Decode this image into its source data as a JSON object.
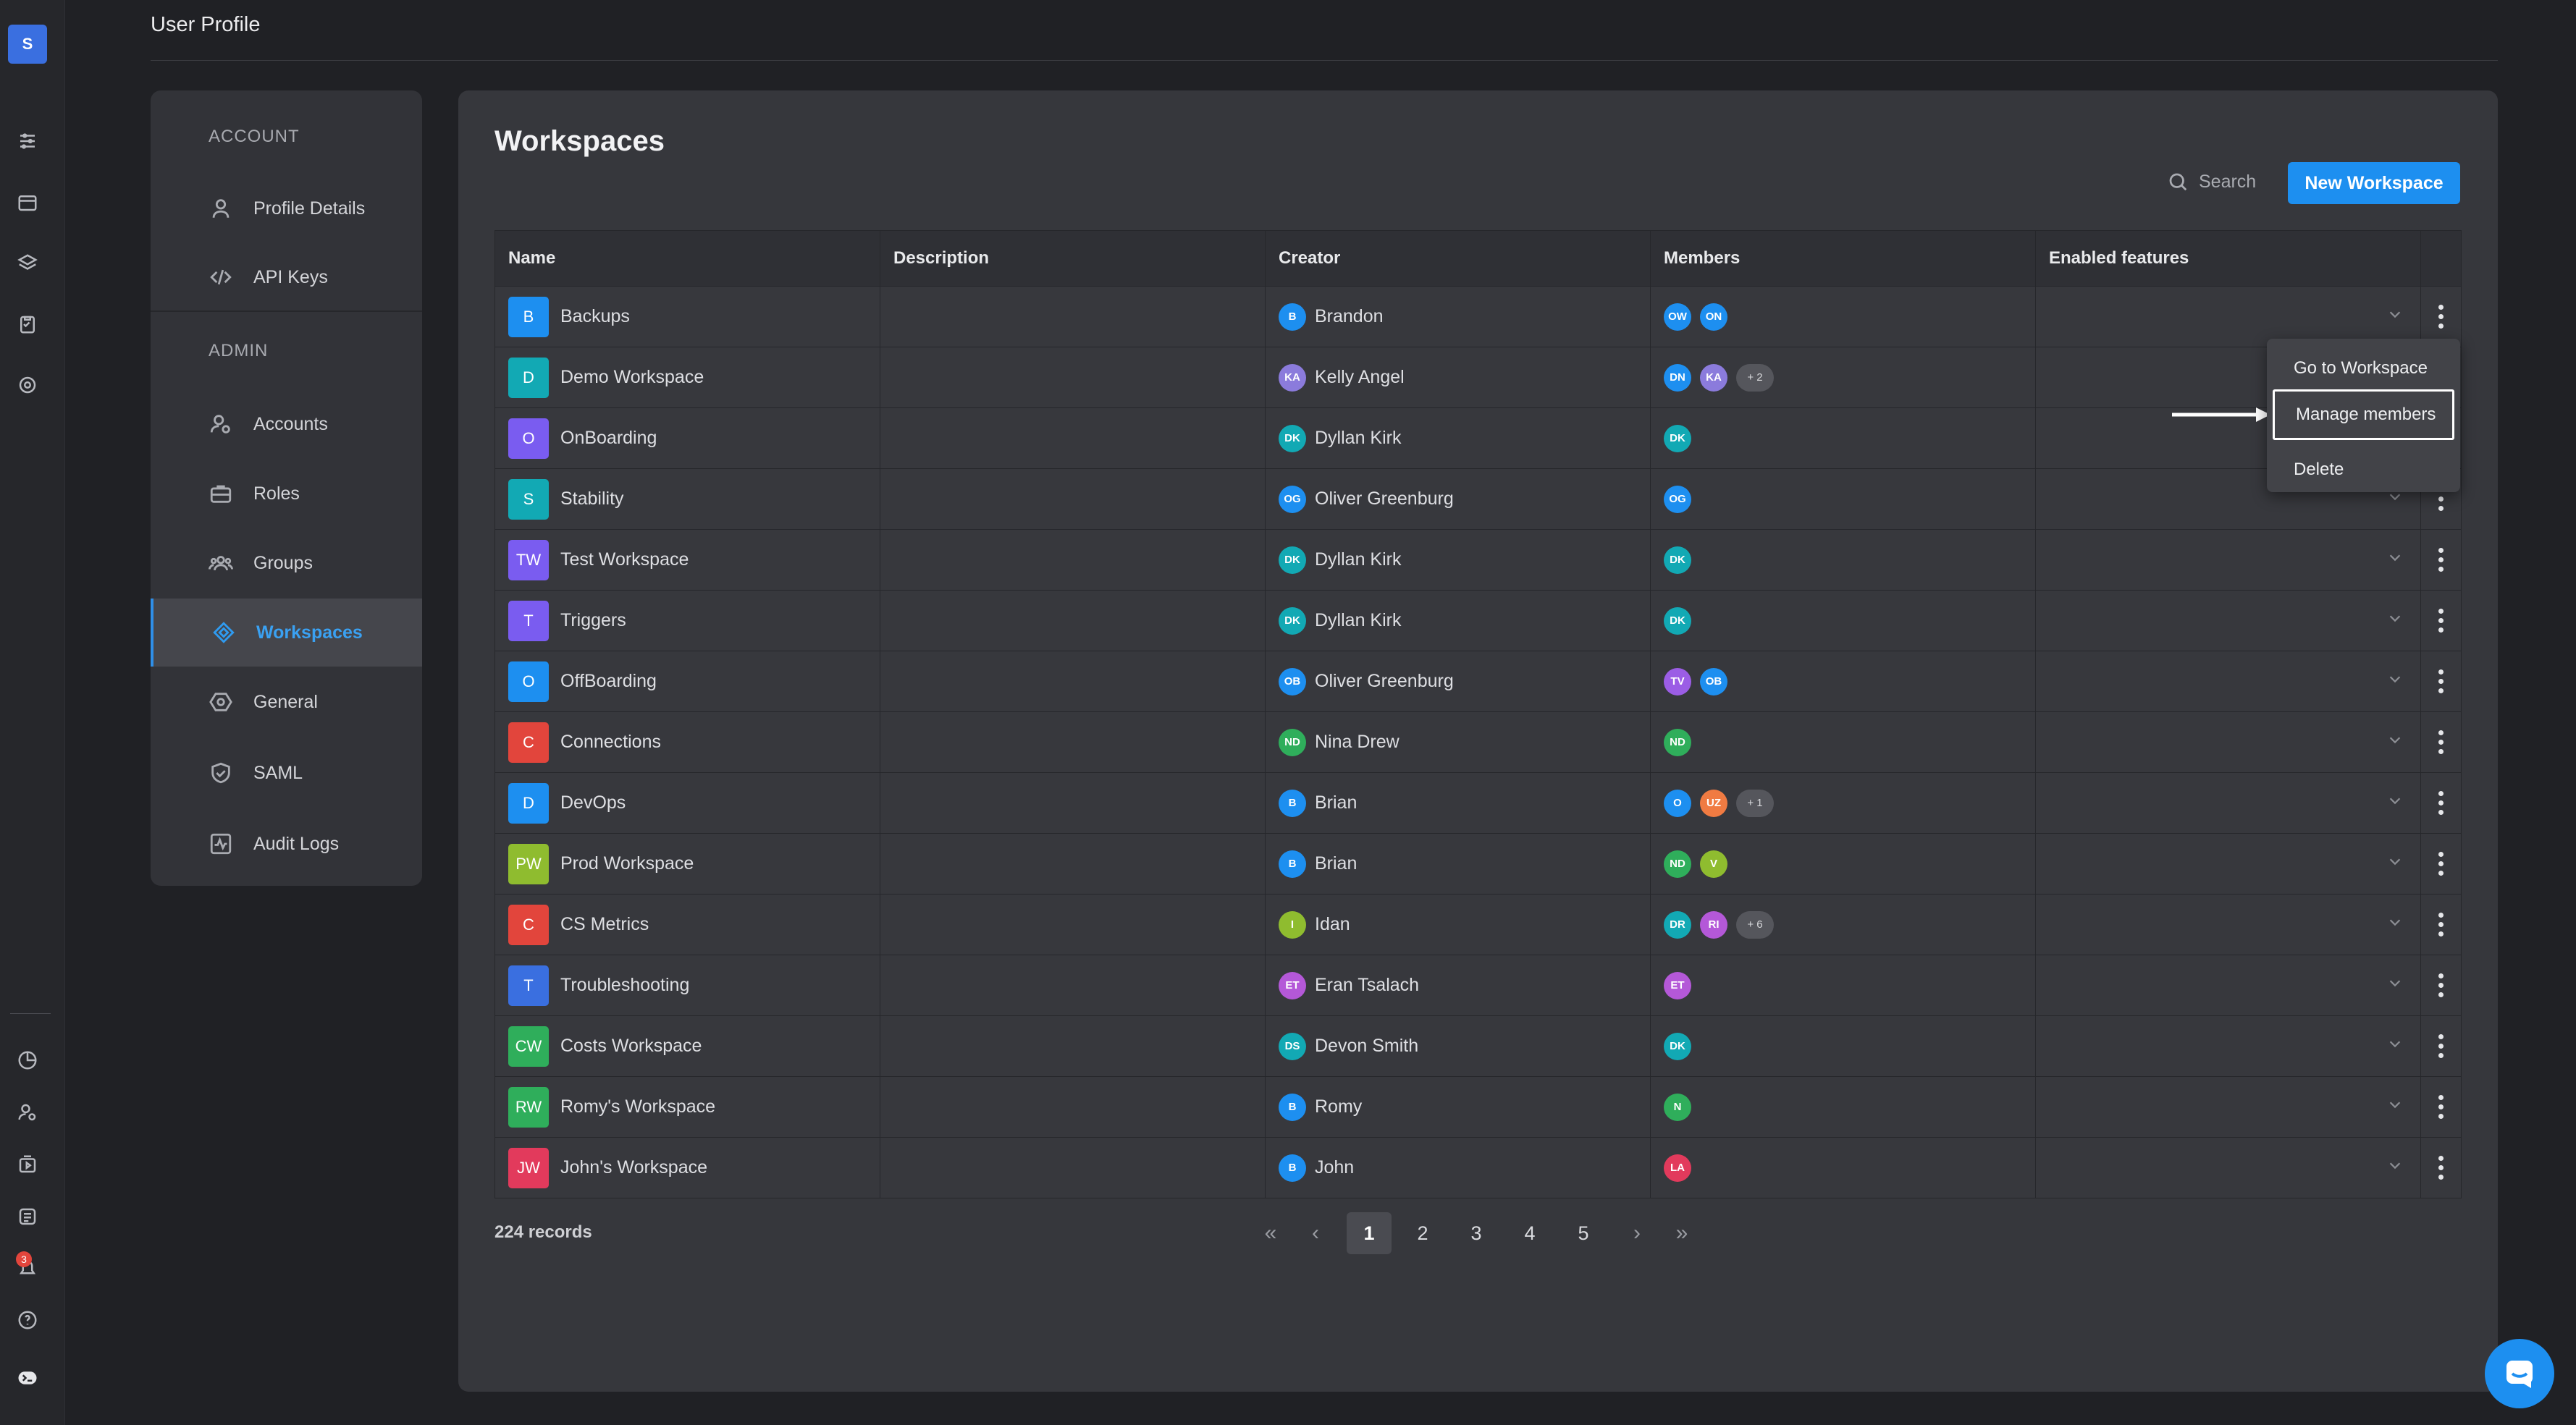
{
  "app": {
    "logo_letter": "S",
    "accent": "#1d8ff0",
    "notification_count": "3"
  },
  "header": {
    "title": "User Profile"
  },
  "rail": {
    "icons": [
      "sliders-icon",
      "calendar-icon",
      "layers-icon",
      "clipboard-icon",
      "target-icon",
      "pie-chart-icon",
      "user-settings-icon",
      "media-box-icon",
      "report-icon",
      "notifications-icon",
      "help-icon",
      "terminal-icon"
    ]
  },
  "nav": {
    "account_heading": "ACCOUNT",
    "admin_heading": "ADMIN",
    "items": [
      {
        "label": "Profile Details",
        "icon": "user-icon"
      },
      {
        "label": "API Keys",
        "icon": "code-icon"
      },
      {
        "label": "Accounts",
        "icon": "user-gear-icon"
      },
      {
        "label": "Roles",
        "icon": "briefcase-icon"
      },
      {
        "label": "Groups",
        "icon": "users-icon"
      },
      {
        "label": "Workspaces",
        "icon": "diamond-icon",
        "active": true
      },
      {
        "label": "General",
        "icon": "gear-hexagon-icon"
      },
      {
        "label": "SAML",
        "icon": "shield-check-icon"
      },
      {
        "label": "Audit Logs",
        "icon": "activity-icon"
      }
    ]
  },
  "main": {
    "title": "Workspaces",
    "search_placeholder": "Search",
    "new_button": "New Workspace",
    "columns": [
      "Name",
      "Description",
      "Creator",
      "Members",
      "Enabled features"
    ],
    "rows": [
      {
        "sq": "B",
        "sqcolor": "#1d8ff0",
        "name": "Backups",
        "creator_init": "B",
        "creator_color": "#1d8ff0",
        "creator": "Brandon",
        "members": [
          {
            "i": "OW",
            "c": "#1d8ff0"
          },
          {
            "i": "ON",
            "c": "#1d8ff0"
          }
        ],
        "more": ""
      },
      {
        "sq": "D",
        "sqcolor": "#12a9b4",
        "name": "Demo Workspace",
        "creator_init": "KA",
        "creator_color": "#8b7bdc",
        "creator": "Kelly Angel",
        "members": [
          {
            "i": "DN",
            "c": "#1d8ff0"
          },
          {
            "i": "KA",
            "c": "#8b7bdc"
          }
        ],
        "more": "+ 2"
      },
      {
        "sq": "O",
        "sqcolor": "#7a5cf0",
        "name": "OnBoarding",
        "creator_init": "DK",
        "creator_color": "#12a9b4",
        "creator": "Dyllan Kirk",
        "members": [
          {
            "i": "DK",
            "c": "#12a9b4"
          }
        ],
        "more": ""
      },
      {
        "sq": "S",
        "sqcolor": "#12a9b4",
        "name": "Stability",
        "creator_init": "OG",
        "creator_color": "#1d8ff0",
        "creator": "Oliver Greenburg",
        "members": [
          {
            "i": "OG",
            "c": "#1d8ff0"
          }
        ],
        "more": ""
      },
      {
        "sq": "TW",
        "sqcolor": "#7a5cf0",
        "name": "Test Workspace",
        "creator_init": "DK",
        "creator_color": "#12a9b4",
        "creator": "Dyllan Kirk",
        "members": [
          {
            "i": "DK",
            "c": "#12a9b4"
          }
        ],
        "more": ""
      },
      {
        "sq": "T",
        "sqcolor": "#7a5cf0",
        "name": "Triggers",
        "creator_init": "DK",
        "creator_color": "#12a9b4",
        "creator": "Dyllan Kirk",
        "members": [
          {
            "i": "DK",
            "c": "#12a9b4"
          }
        ],
        "more": ""
      },
      {
        "sq": "O",
        "sqcolor": "#1d8ff0",
        "name": "OffBoarding",
        "creator_init": "OB",
        "creator_color": "#1d8ff0",
        "creator": "Oliver Greenburg",
        "members": [
          {
            "i": "TV",
            "c": "#9b5de5"
          },
          {
            "i": "OB",
            "c": "#1d8ff0"
          }
        ],
        "more": ""
      },
      {
        "sq": "C",
        "sqcolor": "#e2453c",
        "name": "Connections",
        "creator_init": "ND",
        "creator_color": "#2fae5b",
        "creator": "Nina Drew",
        "members": [
          {
            "i": "ND",
            "c": "#2fae5b"
          }
        ],
        "more": ""
      },
      {
        "sq": "D",
        "sqcolor": "#1d8ff0",
        "name": "DevOps",
        "creator_init": "B",
        "creator_color": "#1d8ff0",
        "creator": "Brian",
        "members": [
          {
            "i": "O",
            "c": "#1d8ff0"
          },
          {
            "i": "UZ",
            "c": "#f07b42"
          }
        ],
        "more": "+ 1"
      },
      {
        "sq": "PW",
        "sqcolor": "#8fbc2f",
        "name": "Prod Workspace",
        "creator_init": "B",
        "creator_color": "#1d8ff0",
        "creator": "Brian",
        "members": [
          {
            "i": "ND",
            "c": "#2fae5b"
          },
          {
            "i": "V",
            "c": "#8fbc2f"
          }
        ],
        "more": ""
      },
      {
        "sq": "C",
        "sqcolor": "#e2453c",
        "name": "CS Metrics",
        "creator_init": "I",
        "creator_color": "#8fbc2f",
        "creator": "Idan",
        "members": [
          {
            "i": "DR",
            "c": "#12a9b4"
          },
          {
            "i": "RI",
            "c": "#b458d8"
          }
        ],
        "more": "+ 6"
      },
      {
        "sq": "T",
        "sqcolor": "#3a6fe0",
        "name": "Troubleshooting",
        "creator_init": "ET",
        "creator_color": "#b458d8",
        "creator": "Eran Tsalach",
        "members": [
          {
            "i": "ET",
            "c": "#b458d8"
          }
        ],
        "more": ""
      },
      {
        "sq": "CW",
        "sqcolor": "#2fae5b",
        "name": "Costs Workspace",
        "creator_init": "DS",
        "creator_color": "#12a9b4",
        "creator": "Devon Smith",
        "members": [
          {
            "i": "DK",
            "c": "#12a9b4"
          }
        ],
        "more": ""
      },
      {
        "sq": "RW",
        "sqcolor": "#2fae5b",
        "name": "Romy's Workspace",
        "creator_init": "B",
        "creator_color": "#1d8ff0",
        "creator": "Romy",
        "members": [
          {
            "i": "N",
            "c": "#2fae5b"
          }
        ],
        "more": ""
      },
      {
        "sq": "JW",
        "sqcolor": "#e23a5c",
        "name": "John's Workspace",
        "creator_init": "B",
        "creator_color": "#1d8ff0",
        "creator": "John",
        "members": [
          {
            "i": "LA",
            "c": "#e23a5c"
          }
        ],
        "more": ""
      }
    ],
    "records": "224 records",
    "pages": [
      "1",
      "2",
      "3",
      "4",
      "5"
    ],
    "current_page": "1"
  },
  "menu": {
    "items": [
      "Go to Workspace",
      "Manage members",
      "Delete"
    ],
    "highlighted": "Manage members"
  }
}
